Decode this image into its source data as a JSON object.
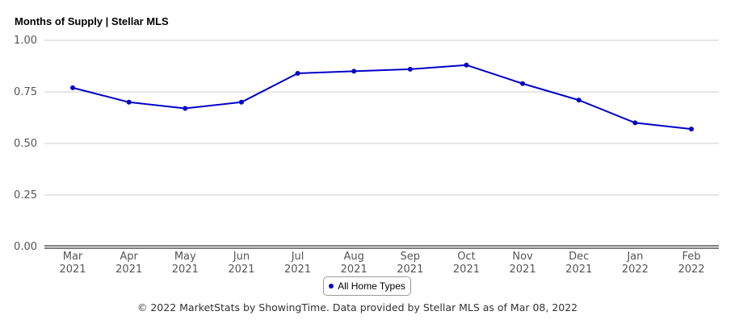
{
  "chart_data": {
    "type": "line",
    "title": "Months of Supply | Stellar MLS",
    "categories": [
      [
        "Mar",
        "2021"
      ],
      [
        "Apr",
        "2021"
      ],
      [
        "May",
        "2021"
      ],
      [
        "Jun",
        "2021"
      ],
      [
        "Jul",
        "2021"
      ],
      [
        "Aug",
        "2021"
      ],
      [
        "Sep",
        "2021"
      ],
      [
        "Oct",
        "2021"
      ],
      [
        "Nov",
        "2021"
      ],
      [
        "Dec",
        "2021"
      ],
      [
        "Jan",
        "2022"
      ],
      [
        "Feb",
        "2022"
      ]
    ],
    "series": [
      {
        "name": "All Home Types",
        "color": "#0000c8",
        "values": [
          0.77,
          0.7,
          0.67,
          0.7,
          0.84,
          0.85,
          0.86,
          0.88,
          0.79,
          0.71,
          0.6,
          0.57
        ]
      }
    ],
    "yticks": [
      "0.00",
      "0.25",
      "0.50",
      "0.75",
      "1.00"
    ],
    "ylim": [
      0,
      1
    ],
    "grid": true,
    "legend_position": "bottom-center"
  },
  "footer": "© 2022 MarketStats by ShowingTime. Data provided by Stellar MLS as of Mar 08, 2022"
}
